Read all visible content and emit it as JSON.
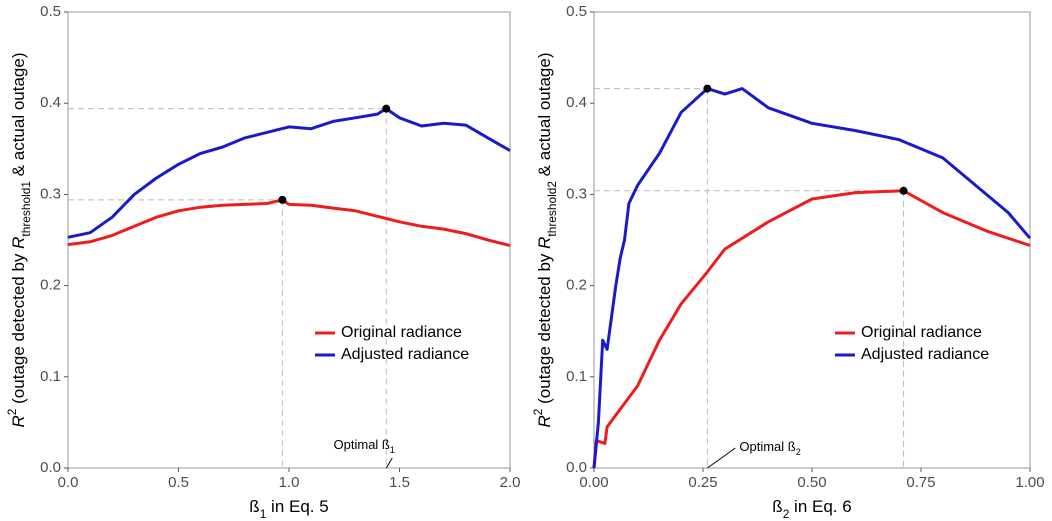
{
  "chart_data": [
    {
      "type": "line",
      "x_label": [
        {
          "text": "ß",
          "style": "normal"
        },
        {
          "text": "1",
          "style": "sub"
        },
        {
          "text": " in Eq. 5",
          "style": "normal"
        }
      ],
      "y_label": [
        {
          "text": "R",
          "style": "italic"
        },
        {
          "text": "2",
          "style": "sup"
        },
        {
          "text": " (outage detected by ",
          "style": "normal"
        },
        {
          "text": "R",
          "style": "italic"
        },
        {
          "text": "threshold1",
          "style": "sub"
        },
        {
          "text": " & actual outage)",
          "style": "normal"
        }
      ],
      "xlim": [
        0,
        2
      ],
      "ylim": [
        0,
        0.5
      ],
      "xticks": [
        {
          "value": 0,
          "label": "0.0"
        },
        0.5,
        {
          "value": 1,
          "label": "1.0"
        },
        1.5,
        {
          "value": 2,
          "label": "2.0"
        }
      ],
      "yticks": [
        {
          "value": 0,
          "label": "0.0"
        },
        0.1,
        0.2,
        0.3,
        0.4,
        0.5
      ],
      "series": [
        {
          "name": "Original radiance",
          "color": "#ee1c1c",
          "x": [
            0,
            0.1,
            0.2,
            0.3,
            0.4,
            0.5,
            0.6,
            0.7,
            0.8,
            0.9,
            0.97,
            1.0,
            1.1,
            1.2,
            1.3,
            1.4,
            1.5,
            1.6,
            1.7,
            1.8,
            1.9,
            2.0
          ],
          "values": [
            0.245,
            0.248,
            0.255,
            0.265,
            0.275,
            0.282,
            0.286,
            0.288,
            0.289,
            0.29,
            0.294,
            0.289,
            0.288,
            0.285,
            0.282,
            0.276,
            0.27,
            0.265,
            0.262,
            0.257,
            0.25,
            0.244
          ]
        },
        {
          "name": "Adjusted radiance",
          "color": "#1a1acc",
          "x": [
            0,
            0.1,
            0.2,
            0.3,
            0.4,
            0.5,
            0.6,
            0.7,
            0.8,
            0.9,
            1.0,
            1.1,
            1.2,
            1.3,
            1.4,
            1.44,
            1.5,
            1.6,
            1.7,
            1.8,
            1.9,
            2.0
          ],
          "values": [
            0.253,
            0.258,
            0.275,
            0.3,
            0.318,
            0.333,
            0.345,
            0.352,
            0.362,
            0.368,
            0.374,
            0.372,
            0.38,
            0.384,
            0.388,
            0.394,
            0.384,
            0.375,
            0.378,
            0.376,
            0.362,
            0.348
          ]
        }
      ],
      "points": [
        {
          "x": 0.97,
          "y": 0.294
        },
        {
          "x": 1.44,
          "y": 0.394
        }
      ],
      "annotation": {
        "x": 1.44,
        "segments": [
          {
            "text": "Optimal ß",
            "style": "normal"
          },
          {
            "text": "1",
            "style": "sub"
          }
        ]
      }
    },
    {
      "type": "line",
      "x_label": [
        {
          "text": "ß",
          "style": "normal"
        },
        {
          "text": "2",
          "style": "sub"
        },
        {
          "text": " in Eq. 6",
          "style": "normal"
        }
      ],
      "y_label": [
        {
          "text": "R",
          "style": "italic"
        },
        {
          "text": "2",
          "style": "sup"
        },
        {
          "text": " (outage detected by ",
          "style": "normal"
        },
        {
          "text": "R",
          "style": "italic"
        },
        {
          "text": "threshold2",
          "style": "sub"
        },
        {
          "text": " & actual outage)",
          "style": "normal"
        }
      ],
      "xlim": [
        0,
        1
      ],
      "ylim": [
        0,
        0.5
      ],
      "xticks": [
        {
          "value": 0,
          "label": "0.00"
        },
        0.25,
        {
          "value": 0.5,
          "label": "0.50"
        },
        0.75,
        {
          "value": 1,
          "label": "1.00"
        }
      ],
      "yticks": [
        {
          "value": 0,
          "label": "0.0"
        },
        0.1,
        0.2,
        0.3,
        0.4,
        0.5
      ],
      "series": [
        {
          "name": "Original radiance",
          "color": "#ee1c1c",
          "x": [
            0,
            0.005,
            0.025,
            0.03,
            0.05,
            0.1,
            0.15,
            0.2,
            0.26,
            0.3,
            0.4,
            0.5,
            0.6,
            0.71,
            0.8,
            0.9,
            1.0
          ],
          "values": [
            0,
            0.03,
            0.027,
            0.045,
            0.058,
            0.09,
            0.14,
            0.18,
            0.215,
            0.24,
            0.27,
            0.295,
            0.302,
            0.304,
            0.28,
            0.26,
            0.244
          ]
        },
        {
          "name": "Adjusted radiance",
          "color": "#1a1acc",
          "x": [
            0,
            0.01,
            0.02,
            0.03,
            0.05,
            0.06,
            0.07,
            0.08,
            0.1,
            0.15,
            0.2,
            0.26,
            0.3,
            0.34,
            0.4,
            0.5,
            0.6,
            0.7,
            0.8,
            0.9,
            0.95,
            1.0
          ],
          "values": [
            0,
            0.05,
            0.14,
            0.13,
            0.2,
            0.23,
            0.25,
            0.29,
            0.31,
            0.345,
            0.39,
            0.416,
            0.41,
            0.416,
            0.395,
            0.378,
            0.37,
            0.36,
            0.34,
            0.3,
            0.28,
            0.252
          ]
        }
      ],
      "points": [
        {
          "x": 0.26,
          "y": 0.416
        },
        {
          "x": 0.71,
          "y": 0.304
        }
      ],
      "annotation": {
        "x": 0.26,
        "segments": [
          {
            "text": "Optimal ß",
            "style": "normal"
          },
          {
            "text": "2",
            "style": "sub"
          }
        ]
      }
    }
  ]
}
